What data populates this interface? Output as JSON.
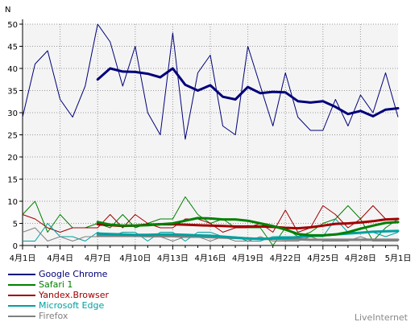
{
  "chart_data": {
    "type": "line",
    "ylabel": "N",
    "ylim": [
      0,
      50
    ],
    "yticks": [
      0,
      5,
      10,
      15,
      20,
      25,
      30,
      35,
      40,
      45,
      50
    ],
    "x_dates": [
      "4月1日",
      "4月2日",
      "4月3日",
      "4月4日",
      "4月5日",
      "4月6日",
      "4月7日",
      "4月8日",
      "4月9日",
      "4月10日",
      "4月11日",
      "4月12日",
      "4月13日",
      "4月14日",
      "4月15日",
      "4月16日",
      "4月17日",
      "4月18日",
      "4月19日",
      "4月20日",
      "4月21日",
      "4月22日",
      "4月23日",
      "4月24日",
      "4月25日",
      "4月26日",
      "4月27日",
      "4月28日",
      "4月29日",
      "4月30日",
      "5月1日"
    ],
    "xtick_labels": [
      "4月1日",
      "4月4日",
      "4月7日",
      "4月10日",
      "4月13日",
      "4月16日",
      "4月19日",
      "4月22日",
      "4月25日",
      "4月28日",
      "5月1日"
    ],
    "grid": true,
    "series": [
      {
        "name": "Google Chrome",
        "color": "#00007a",
        "values": [
          29,
          41,
          44,
          33,
          29,
          36,
          50,
          46,
          36,
          45,
          30,
          25,
          48,
          24,
          39,
          43,
          27,
          25,
          45,
          36,
          27,
          39,
          29,
          26,
          26,
          33,
          27,
          34,
          30,
          39,
          29
        ],
        "smooth_start_index": 6,
        "smooth": [
          37.5,
          40,
          39.3,
          39.2,
          38.8,
          38,
          40,
          36.3,
          35,
          36.2,
          33.6,
          33,
          35.8,
          34.4,
          34.7,
          34.6,
          32.6,
          32.3,
          32.6,
          31.3,
          29.7,
          30.4,
          29.2,
          30.7,
          31
        ]
      },
      {
        "name": "Safari 1",
        "color": "#008000",
        "values": [
          7,
          10,
          3,
          7,
          4,
          4,
          5,
          4,
          7,
          4,
          5,
          6,
          6,
          11,
          7,
          5,
          6,
          4,
          4,
          4,
          0,
          4,
          2,
          3,
          5,
          6,
          9,
          6,
          1,
          4,
          6
        ],
        "smooth_start_index": 6,
        "smooth": [
          5.3,
          4.7,
          4.5,
          4.5,
          4.6,
          4.8,
          5,
          5.6,
          6.2,
          6.1,
          5.9,
          5.9,
          5.6,
          5,
          4.4,
          3.6,
          2.6,
          2.3,
          2.3,
          2.5,
          3,
          3.8,
          4.5,
          5.1,
          5.3
        ]
      },
      {
        "name": "Yandex.Browser",
        "color": "#a00000",
        "values": [
          7,
          6,
          4,
          3,
          4,
          4,
          4,
          7,
          4,
          7,
          5,
          4,
          4,
          6,
          6,
          5,
          3,
          4,
          4,
          5,
          3,
          8,
          3,
          4,
          9,
          7,
          4,
          6,
          9,
          6,
          6
        ],
        "smooth_start_index": 6,
        "smooth": [
          4.8,
          4.6,
          4.4,
          4.5,
          4.7,
          4.8,
          4.8,
          4.7,
          4.6,
          4.5,
          4.4,
          4.3,
          4.3,
          4.3,
          4.2,
          4.0,
          3.9,
          4.1,
          4.5,
          4.9,
          5,
          5.2,
          5.5,
          5.9,
          6
        ]
      },
      {
        "name": "Microsoft Edge",
        "color": "#00a0a0",
        "values": [
          1,
          1,
          5,
          2,
          2,
          1,
          3,
          2,
          3,
          3,
          1,
          3,
          3,
          1,
          3,
          3,
          2,
          2,
          1,
          1,
          2,
          2,
          2,
          2,
          2,
          6,
          3,
          3,
          3,
          2,
          3
        ],
        "smooth_start_index": 6,
        "smooth": [
          2.7,
          2.6,
          2.5,
          2.4,
          2.4,
          2.5,
          2.5,
          2.4,
          2.3,
          2.2,
          2.0,
          1.8,
          1.6,
          1.5,
          1.6,
          1.7,
          1.9,
          2.1,
          2.3,
          2.5,
          2.7,
          2.9,
          3.1,
          3.2,
          3.3
        ]
      },
      {
        "name": "Firefox",
        "color": "#808080",
        "values": [
          3,
          4,
          1,
          2,
          1,
          2,
          2,
          2,
          2,
          2,
          2,
          2,
          1,
          2,
          2,
          1,
          2,
          1,
          1,
          2,
          1,
          1,
          1,
          2,
          1,
          1,
          1,
          2,
          1,
          1,
          1
        ],
        "smooth_start_index": 6,
        "smooth": [
          2.3,
          2.3,
          2.2,
          2.2,
          2.1,
          2.1,
          2.1,
          2.0,
          2.0,
          1.9,
          1.8,
          1.7,
          1.6,
          1.5,
          1.5,
          1.4,
          1.4,
          1.3,
          1.3,
          1.3,
          1.3,
          1.3,
          1.3,
          1.3,
          1.3
        ]
      }
    ]
  },
  "watermark": "LiveInternet"
}
